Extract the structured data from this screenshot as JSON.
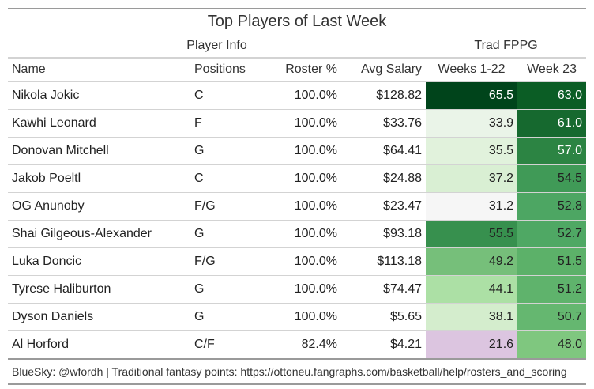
{
  "chart_data": {
    "type": "table",
    "title": "Top Players of Last Week",
    "spanners": {
      "player_info": "Player Info",
      "trad_fppg": "Trad FPPG"
    },
    "columns": [
      "Name",
      "Positions",
      "Roster %",
      "Avg Salary",
      "Weeks 1-22",
      "Week 23"
    ],
    "rows": [
      {
        "name": "Nikola Jokic",
        "positions": "C",
        "roster": "100.0%",
        "salary": "$128.82",
        "weeks_1_22": "65.5",
        "week_23": "63.0",
        "bg_weeks": "#00441b",
        "bg_week23": "#0b5d25",
        "fg_weeks": "#ffffff",
        "fg_week23": "#ffffff"
      },
      {
        "name": "Kawhi Leonard",
        "positions": "F",
        "roster": "100.0%",
        "salary": "$33.76",
        "weeks_1_22": "33.9",
        "week_23": "61.0",
        "bg_weeks": "#eaf4e8",
        "bg_week23": "#16692f",
        "fg_weeks": "#222222",
        "fg_week23": "#ffffff"
      },
      {
        "name": "Donovan Mitchell",
        "positions": "G",
        "roster": "100.0%",
        "salary": "$64.41",
        "weeks_1_22": "35.5",
        "week_23": "57.0",
        "bg_weeks": "#e1f2dc",
        "bg_week23": "#2c8443",
        "fg_weeks": "#222222",
        "fg_week23": "#ffffff"
      },
      {
        "name": "Jakob Poeltl",
        "positions": "C",
        "roster": "100.0%",
        "salary": "$24.88",
        "weeks_1_22": "37.2",
        "week_23": "54.5",
        "bg_weeks": "#d9efd3",
        "bg_week23": "#409a57",
        "fg_weeks": "#222222",
        "fg_week23": "#222222"
      },
      {
        "name": "OG Anunoby",
        "positions": "F/G",
        "roster": "100.0%",
        "salary": "$23.47",
        "weeks_1_22": "31.2",
        "week_23": "52.8",
        "bg_weeks": "#f6f6f6",
        "bg_week23": "#4da663",
        "fg_weeks": "#222222",
        "fg_week23": "#222222"
      },
      {
        "name": "Shai Gilgeous-Alexander",
        "positions": "G",
        "roster": "100.0%",
        "salary": "$93.18",
        "weeks_1_22": "55.5",
        "week_23": "52.7",
        "bg_weeks": "#37904e",
        "bg_week23": "#4fa864",
        "fg_weeks": "#222222",
        "fg_week23": "#222222"
      },
      {
        "name": "Luka Doncic",
        "positions": "F/G",
        "roster": "100.0%",
        "salary": "$113.18",
        "weeks_1_22": "49.2",
        "week_23": "51.5",
        "bg_weeks": "#76bf7a",
        "bg_week23": "#5cb169",
        "fg_weeks": "#222222",
        "fg_week23": "#222222"
      },
      {
        "name": "Tyrese Haliburton",
        "positions": "G",
        "roster": "100.0%",
        "salary": "$74.47",
        "weeks_1_22": "44.1",
        "week_23": "51.2",
        "bg_weeks": "#ace0a5",
        "bg_week23": "#5fb36c",
        "fg_weeks": "#222222",
        "fg_week23": "#222222"
      },
      {
        "name": "Dyson Daniels",
        "positions": "G",
        "roster": "100.0%",
        "salary": "$5.65",
        "weeks_1_22": "38.1",
        "week_23": "50.7",
        "bg_weeks": "#d4edcd",
        "bg_week23": "#65b770",
        "fg_weeks": "#222222",
        "fg_week23": "#222222"
      },
      {
        "name": "Al Horford",
        "positions": "C/F",
        "roster": "82.4%",
        "salary": "$4.21",
        "weeks_1_22": "21.6",
        "week_23": "48.0",
        "bg_weeks": "#dcc5e0",
        "bg_week23": "#7fc77f",
        "fg_weeks": "#222222",
        "fg_week23": "#222222"
      }
    ],
    "footer": "BlueSky: @wfordh | Traditional fantasy points: https://ottoneu.fangraphs.com/basketball/help/rosters_and_scoring"
  }
}
